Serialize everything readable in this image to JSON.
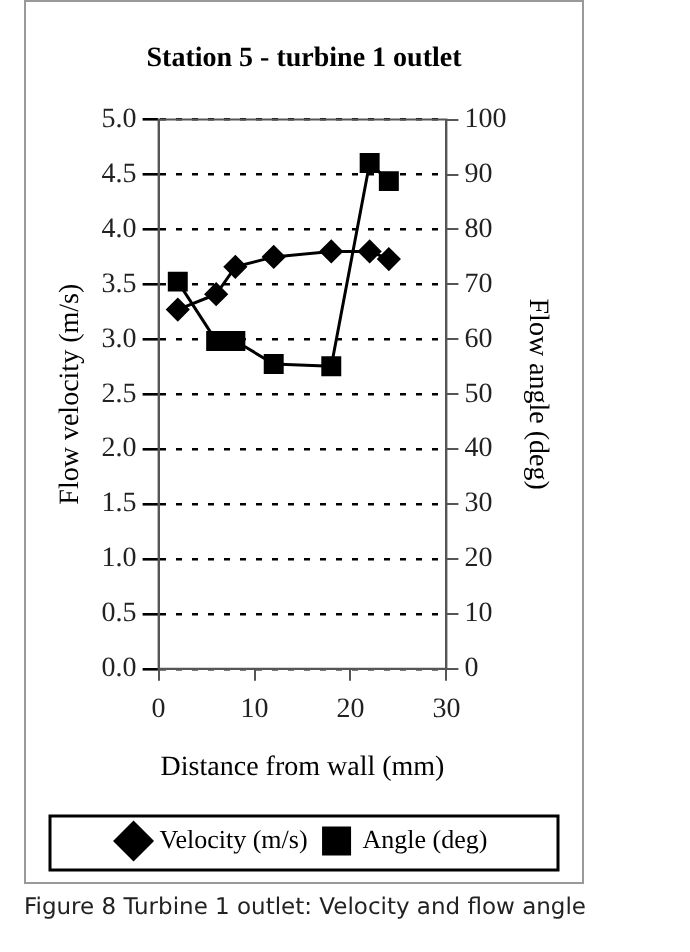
{
  "chart_data": {
    "type": "line",
    "title": "Station 5 - turbine 1 outlet",
    "xlabel": "Distance from wall (mm)",
    "ylabel": "Flow velocity (m/s)",
    "y2label": "Flow angle (deg)",
    "x": [
      2,
      6,
      8,
      12,
      18,
      22,
      24
    ],
    "series": [
      {
        "name": "Velocity (m/s)",
        "color": "#000000",
        "marker": "diamond",
        "values": [
          3.27,
          3.41,
          3.66,
          3.75,
          3.8,
          3.8,
          3.73
        ]
      },
      {
        "name": "Angle (deg)",
        "color": "#000000",
        "marker": "square",
        "axis": "y2",
        "values": [
          70.5,
          59.7,
          59.7,
          55.5,
          55.1,
          92.1,
          88.8
        ]
      }
    ],
    "xlim": [
      0,
      30
    ],
    "xticks": [
      0,
      10,
      20,
      30
    ],
    "ylim": [
      0,
      5
    ],
    "yticks": [
      {
        "value": 0,
        "label": "0.0"
      },
      {
        "value": 0.5,
        "label": "0.5"
      },
      {
        "value": 1,
        "label": "1.0"
      },
      {
        "value": 1.5,
        "label": "1.5"
      },
      {
        "value": 2,
        "label": "2.0"
      },
      {
        "value": 2.5,
        "label": "2.5"
      },
      {
        "value": 3,
        "label": "3.0"
      },
      {
        "value": 3.5,
        "label": "3.5"
      },
      {
        "value": 4,
        "label": "4.0"
      },
      {
        "value": 4.5,
        "label": "4.5"
      },
      {
        "value": 5,
        "label": "5.0"
      }
    ],
    "y2lim": [
      0,
      100
    ],
    "y2ticks": [
      0,
      10,
      20,
      30,
      40,
      50,
      60,
      70,
      80,
      90,
      100
    ],
    "grid": "y",
    "legend": "bottom",
    "line_style": "solid",
    "annotations": [
      "Figure 8 Turbine 1 outlet: Velocity and flow angle"
    ]
  }
}
